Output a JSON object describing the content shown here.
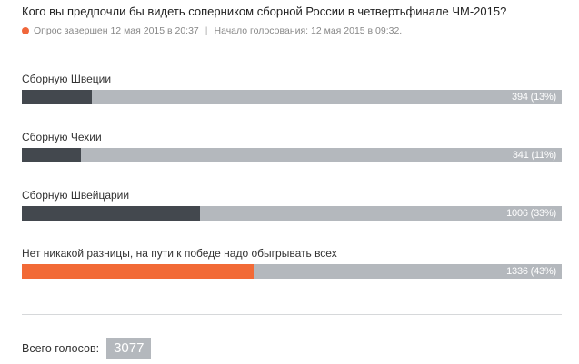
{
  "poll": {
    "question": "Кого вы предпочли бы видеть соперником сборной России в четвертьфинале ЧМ-2015?",
    "status": "Опрос завершен 12 мая 2015 в 20:37",
    "separator": "|",
    "start": "Начало голосования: 12 мая 2015 в 09:32.",
    "options": [
      {
        "label": "Сборную Швеции",
        "count_text": "394 (13%)",
        "share": 0.13,
        "winner": false
      },
      {
        "label": "Сборную Чехии",
        "count_text": "341 (11%)",
        "share": 0.11,
        "winner": false
      },
      {
        "label": "Сборную Швейцарии",
        "count_text": "1006 (33%)",
        "share": 0.33,
        "winner": false
      },
      {
        "label": "Нет никакой разницы, на пути к победе надо обыгрывать всех",
        "count_text": "1336 (43%)",
        "share": 0.43,
        "winner": true
      }
    ],
    "total_label": "Всего голосов:",
    "total_value": "3077"
  },
  "colors": {
    "bar_track": "#b4b8bd",
    "bar_fill": "#43484e",
    "bar_winner": "#f26a36",
    "status_dot": "#f0663a"
  }
}
